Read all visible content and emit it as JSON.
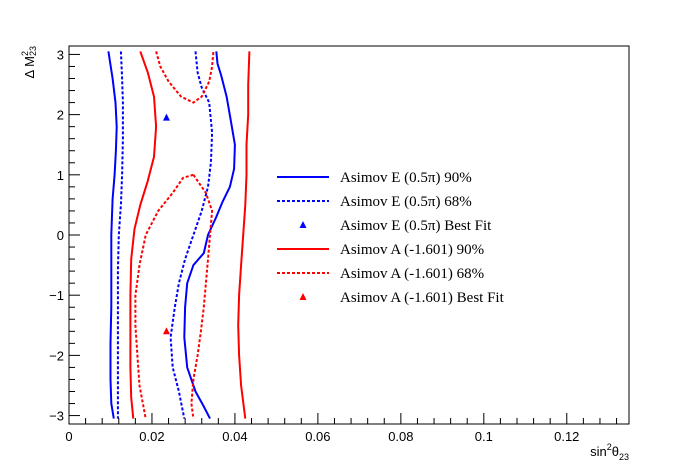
{
  "chart_data": {
    "type": "contour",
    "title": "",
    "xlabel": {
      "base": "sin",
      "sup": "2",
      "sym": "θ",
      "sub": "23"
    },
    "ylabel": {
      "base": "Δ M",
      "sup": "2",
      "sub": "23"
    },
    "xlim": [
      0,
      0.135
    ],
    "ylim": [
      -3.14,
      3.14
    ],
    "x_ticks": [
      0,
      0.02,
      0.04,
      0.06,
      0.08,
      0.1,
      0.12
    ],
    "x_tick_labels": [
      "0",
      "0.02",
      "0.04",
      "0.06",
      "0.08",
      "0.1",
      "0.12"
    ],
    "y_ticks": [
      -3,
      -2,
      -1,
      0,
      1,
      2,
      3
    ],
    "y_tick_labels": [
      "−3",
      "−2",
      "−1",
      "0",
      "1",
      "2",
      "3"
    ],
    "grid": false,
    "legend_position": "right-center",
    "series": [
      {
        "name": "Asimov E (0.5π) 90%",
        "color": "#0000ff",
        "style": "solid",
        "kind": "contour",
        "paths": [
          [
            [
              0.0095,
              3.05
            ],
            [
              0.0105,
              2.6
            ],
            [
              0.0112,
              2.2
            ],
            [
              0.0115,
              1.8
            ],
            [
              0.0113,
              1.4
            ],
            [
              0.011,
              1.0
            ],
            [
              0.0105,
              0.6
            ],
            [
              0.0102,
              0.0
            ],
            [
              0.0102,
              -0.6
            ],
            [
              0.0102,
              -1.2
            ],
            [
              0.01,
              -1.8
            ],
            [
              0.01,
              -2.4
            ],
            [
              0.0102,
              -2.8
            ],
            [
              0.0108,
              -3.05
            ]
          ],
          [
            [
              0.0355,
              3.05
            ],
            [
              0.0358,
              2.85
            ],
            [
              0.0367,
              2.65
            ],
            [
              0.038,
              2.3
            ],
            [
              0.039,
              1.9
            ],
            [
              0.04,
              1.5
            ],
            [
              0.0398,
              1.1
            ],
            [
              0.0388,
              0.8
            ],
            [
              0.037,
              0.55
            ],
            [
              0.0355,
              0.3
            ],
            [
              0.0335,
              0.0
            ],
            [
              0.0325,
              -0.3
            ],
            [
              0.03,
              -0.5
            ],
            [
              0.0285,
              -0.8
            ],
            [
              0.028,
              -1.2
            ],
            [
              0.0278,
              -1.7
            ],
            [
              0.0285,
              -2.2
            ],
            [
              0.0305,
              -2.6
            ],
            [
              0.0325,
              -2.85
            ],
            [
              0.034,
              -3.05
            ]
          ]
        ]
      },
      {
        "name": "Asimov E (0.5π) 68%",
        "color": "#0000ff",
        "style": "dotted",
        "kind": "contour",
        "paths": [
          [
            [
              0.0125,
              3.05
            ],
            [
              0.0128,
              2.6
            ],
            [
              0.013,
              2.2
            ],
            [
              0.013,
              1.6
            ],
            [
              0.0128,
              1.0
            ],
            [
              0.0125,
              0.5
            ],
            [
              0.012,
              0.0
            ],
            [
              0.0118,
              -0.6
            ],
            [
              0.0118,
              -1.2
            ],
            [
              0.0118,
              -1.8
            ],
            [
              0.0118,
              -2.4
            ],
            [
              0.0118,
              -3.05
            ]
          ],
          [
            [
              0.0305,
              3.05
            ],
            [
              0.031,
              2.7
            ],
            [
              0.032,
              2.45
            ],
            [
              0.0338,
              2.2
            ],
            [
              0.0345,
              1.7
            ],
            [
              0.0342,
              1.2
            ],
            [
              0.0335,
              0.8
            ],
            [
              0.032,
              0.4
            ],
            [
              0.03,
              0.0
            ],
            [
              0.028,
              -0.4
            ],
            [
              0.0265,
              -0.8
            ],
            [
              0.0255,
              -1.2
            ],
            [
              0.0245,
              -1.7
            ],
            [
              0.025,
              -2.2
            ],
            [
              0.0265,
              -2.6
            ],
            [
              0.0278,
              -3.05
            ]
          ]
        ]
      },
      {
        "name": "Asimov A (-1.601) 90%",
        "color": "#ff0000",
        "style": "solid",
        "kind": "contour",
        "paths": [
          [
            [
              0.0172,
              3.05
            ],
            [
              0.019,
              2.7
            ],
            [
              0.0205,
              2.3
            ],
            [
              0.021,
              1.8
            ],
            [
              0.0205,
              1.3
            ],
            [
              0.019,
              0.9
            ],
            [
              0.0172,
              0.5
            ],
            [
              0.0158,
              0.1
            ],
            [
              0.015,
              -0.4
            ],
            [
              0.0148,
              -1.0
            ],
            [
              0.0148,
              -1.6
            ],
            [
              0.0148,
              -2.2
            ],
            [
              0.015,
              -2.7
            ],
            [
              0.0155,
              -3.05
            ]
          ],
          [
            [
              0.0435,
              3.05
            ],
            [
              0.0432,
              2.5
            ],
            [
              0.0432,
              2.0
            ],
            [
              0.0428,
              1.5
            ],
            [
              0.0428,
              1.0
            ],
            [
              0.0425,
              0.5
            ],
            [
              0.042,
              0.0
            ],
            [
              0.0415,
              -0.5
            ],
            [
              0.041,
              -1.0
            ],
            [
              0.0408,
              -1.5
            ],
            [
              0.041,
              -2.0
            ],
            [
              0.0415,
              -2.5
            ],
            [
              0.0425,
              -3.05
            ]
          ]
        ]
      },
      {
        "name": "Asimov A (-1.601) 68%",
        "color": "#ff0000",
        "style": "dotted",
        "kind": "contour",
        "paths": [
          [
            [
              0.021,
              3.05
            ],
            [
              0.022,
              2.8
            ],
            [
              0.024,
              2.55
            ],
            [
              0.027,
              2.3
            ],
            [
              0.03,
              2.2
            ],
            [
              0.032,
              2.3
            ],
            [
              0.0338,
              2.55
            ],
            [
              0.0345,
              2.8
            ],
            [
              0.0348,
              3.05
            ]
          ],
          [
            [
              0.03,
              1.0
            ],
            [
              0.0275,
              0.95
            ],
            [
              0.025,
              0.7
            ],
            [
              0.0215,
              0.4
            ],
            [
              0.0185,
              0.0
            ],
            [
              0.017,
              -0.5
            ],
            [
              0.016,
              -1.0
            ],
            [
              0.016,
              -1.5
            ],
            [
              0.0165,
              -2.0
            ],
            [
              0.017,
              -2.5
            ],
            [
              0.0185,
              -3.05
            ]
          ],
          [
            [
              0.03,
              1.0
            ],
            [
              0.033,
              0.7
            ],
            [
              0.0345,
              0.4
            ],
            [
              0.034,
              0.0
            ],
            [
              0.0335,
              -0.4
            ],
            [
              0.033,
              -0.8
            ],
            [
              0.0325,
              -1.2
            ],
            [
              0.0318,
              -1.6
            ],
            [
              0.031,
              -2.0
            ],
            [
              0.03,
              -2.4
            ],
            [
              0.0295,
              -2.8
            ],
            [
              0.03,
              -3.05
            ]
          ]
        ]
      },
      {
        "name": "Asimov E (0.5π) Best Fit",
        "color": "#0000ff",
        "kind": "marker",
        "points": [
          [
            0.0235,
            1.95
          ]
        ]
      },
      {
        "name": "Asimov A (-1.601) Best Fit",
        "color": "#ff0000",
        "kind": "marker",
        "points": [
          [
            0.0235,
            -1.6
          ]
        ]
      }
    ]
  }
}
